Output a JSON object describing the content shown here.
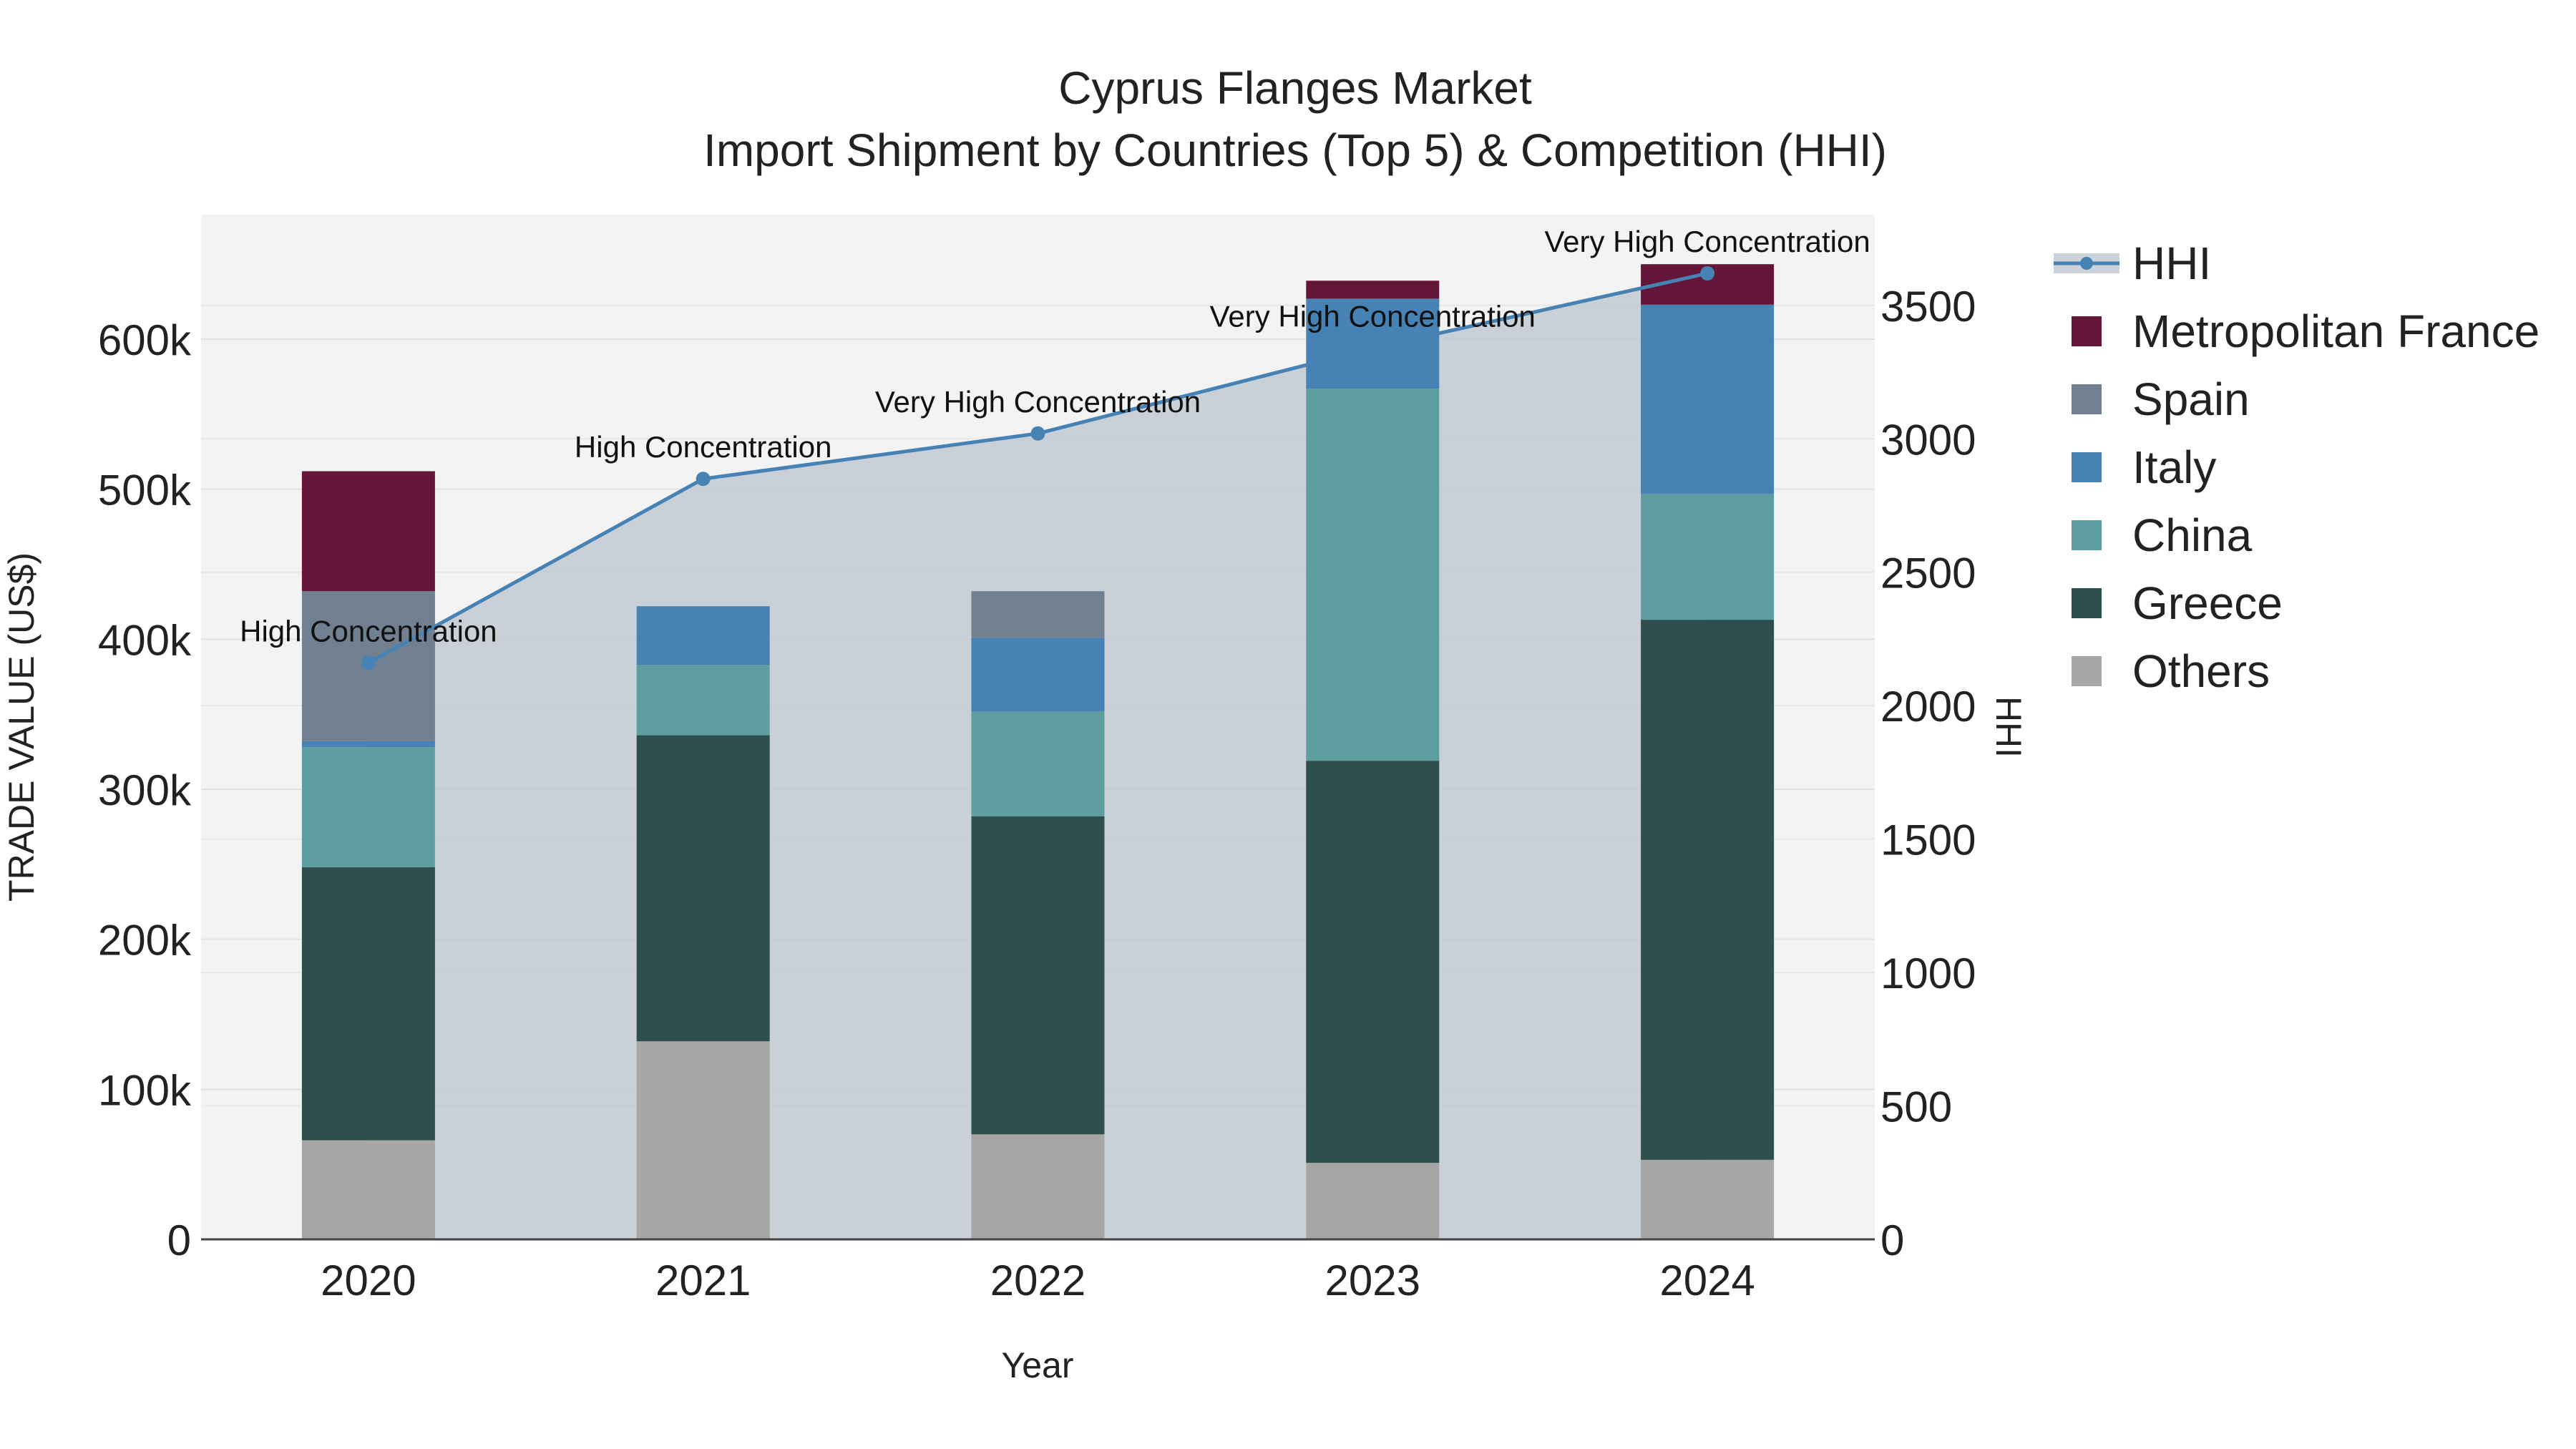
{
  "chart_data": {
    "type": "bar",
    "stacked": true,
    "title": "Cyprus Flanges Market",
    "subtitle": "Import Shipment by Countries (Top 5) & Competition (HHI)",
    "xlabel": "Year",
    "ylabel": "TRADE VALUE (US$)",
    "y2label": "HHI",
    "categories": [
      "2020",
      "2021",
      "2022",
      "2023",
      "2024"
    ],
    "ylim": [
      0,
      683000
    ],
    "y_ticks": [
      0,
      100000,
      200000,
      300000,
      400000,
      500000,
      600000
    ],
    "y_tick_labels": [
      "0",
      "100k",
      "200k",
      "300k",
      "400k",
      "500k",
      "600k"
    ],
    "y2lim": [
      0,
      3840
    ],
    "y2_ticks": [
      0,
      500,
      1000,
      1500,
      2000,
      2500,
      3000,
      3500
    ],
    "y2_tick_labels": [
      "0",
      "500",
      "1000",
      "1500",
      "2000",
      "2500",
      "3000",
      "3500"
    ],
    "series": [
      {
        "name": "Others",
        "color": "#a6a6a6",
        "values": [
          66000,
          132000,
          70000,
          51000,
          53000
        ]
      },
      {
        "name": "Greece",
        "color": "#2f4f4f",
        "values": [
          182000,
          204000,
          212000,
          268000,
          360000
        ]
      },
      {
        "name": "China",
        "color": "#5f9ea0",
        "values": [
          80000,
          47000,
          70000,
          248000,
          84000
        ]
      },
      {
        "name": "Italy",
        "color": "#4682b4",
        "values": [
          4000,
          39000,
          49000,
          60000,
          126000
        ]
      },
      {
        "name": "Spain",
        "color": "#708090",
        "values": [
          100000,
          0,
          31000,
          0,
          0
        ]
      },
      {
        "name": "Metropolitan France",
        "color": "#641638",
        "values": [
          80000,
          0,
          0,
          12000,
          27000
        ]
      }
    ],
    "hhi": {
      "name": "HHI",
      "color": "#4682b4",
      "values": [
        2160,
        2850,
        3020,
        3340,
        3620
      ],
      "labels": [
        "High Concentration",
        "High Concentration",
        "Very High Concentration",
        "Very High Concentration",
        "Very High Concentration"
      ]
    },
    "legend": {
      "position": "right",
      "items": [
        "HHI",
        "Metropolitan France",
        "Spain",
        "Italy",
        "China",
        "Greece",
        "Others"
      ]
    },
    "plot_background": "#f3f3f3",
    "grid": true
  }
}
